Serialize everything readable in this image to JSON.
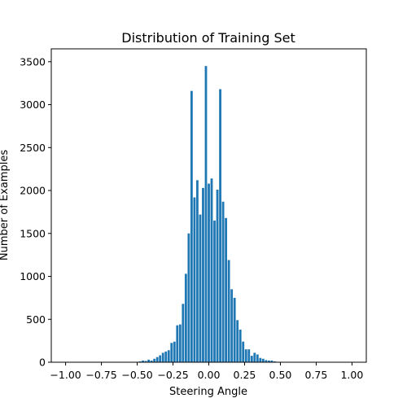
{
  "chart_data": {
    "type": "bar",
    "title": "Distribution of Training Set",
    "xlabel": "Steering Angle",
    "ylabel": "Number of Examples",
    "xlim": [
      -1.1,
      1.1
    ],
    "ylim": [
      0,
      3650
    ],
    "xticks": [
      -1.0,
      -0.75,
      -0.5,
      -0.25,
      0.0,
      0.25,
      0.5,
      0.75,
      1.0
    ],
    "xtick_labels": [
      "−1.00",
      "−0.75",
      "−0.50",
      "−0.25",
      "0.00",
      "0.25",
      "0.50",
      "0.75",
      "1.00"
    ],
    "yticks": [
      0,
      500,
      1000,
      1500,
      2000,
      2500,
      3000,
      3500
    ],
    "ytick_labels": [
      "0",
      "500",
      "1000",
      "1500",
      "2000",
      "2500",
      "3000",
      "3500"
    ],
    "bar_color": "#1f77b4",
    "bin_width": 0.02,
    "bins": [
      {
        "x": -0.5,
        "y": 4
      },
      {
        "x": -0.48,
        "y": 10
      },
      {
        "x": -0.46,
        "y": 20
      },
      {
        "x": -0.44,
        "y": 15
      },
      {
        "x": -0.42,
        "y": 30
      },
      {
        "x": -0.4,
        "y": 20
      },
      {
        "x": -0.38,
        "y": 40
      },
      {
        "x": -0.36,
        "y": 60
      },
      {
        "x": -0.34,
        "y": 80
      },
      {
        "x": -0.32,
        "y": 110
      },
      {
        "x": -0.3,
        "y": 125
      },
      {
        "x": -0.28,
        "y": 140
      },
      {
        "x": -0.26,
        "y": 225
      },
      {
        "x": -0.24,
        "y": 240
      },
      {
        "x": -0.22,
        "y": 430
      },
      {
        "x": -0.2,
        "y": 440
      },
      {
        "x": -0.18,
        "y": 680
      },
      {
        "x": -0.16,
        "y": 1030
      },
      {
        "x": -0.14,
        "y": 1500
      },
      {
        "x": -0.12,
        "y": 3160
      },
      {
        "x": -0.1,
        "y": 1920
      },
      {
        "x": -0.08,
        "y": 2120
      },
      {
        "x": -0.06,
        "y": 1720
      },
      {
        "x": -0.04,
        "y": 2030
      },
      {
        "x": -0.02,
        "y": 3450
      },
      {
        "x": 0.0,
        "y": 2080
      },
      {
        "x": 0.02,
        "y": 2140
      },
      {
        "x": 0.04,
        "y": 1650
      },
      {
        "x": 0.06,
        "y": 2010
      },
      {
        "x": 0.08,
        "y": 3180
      },
      {
        "x": 0.1,
        "y": 1870
      },
      {
        "x": 0.12,
        "y": 1680
      },
      {
        "x": 0.14,
        "y": 1190
      },
      {
        "x": 0.16,
        "y": 850
      },
      {
        "x": 0.18,
        "y": 750
      },
      {
        "x": 0.2,
        "y": 490
      },
      {
        "x": 0.22,
        "y": 380
      },
      {
        "x": 0.24,
        "y": 240
      },
      {
        "x": 0.26,
        "y": 150
      },
      {
        "x": 0.28,
        "y": 150
      },
      {
        "x": 0.3,
        "y": 75
      },
      {
        "x": 0.32,
        "y": 110
      },
      {
        "x": 0.34,
        "y": 90
      },
      {
        "x": 0.36,
        "y": 50
      },
      {
        "x": 0.38,
        "y": 40
      },
      {
        "x": 0.4,
        "y": 25
      },
      {
        "x": 0.42,
        "y": 20
      },
      {
        "x": 0.44,
        "y": 20
      },
      {
        "x": 0.46,
        "y": 10
      },
      {
        "x": 0.48,
        "y": 5
      }
    ]
  }
}
